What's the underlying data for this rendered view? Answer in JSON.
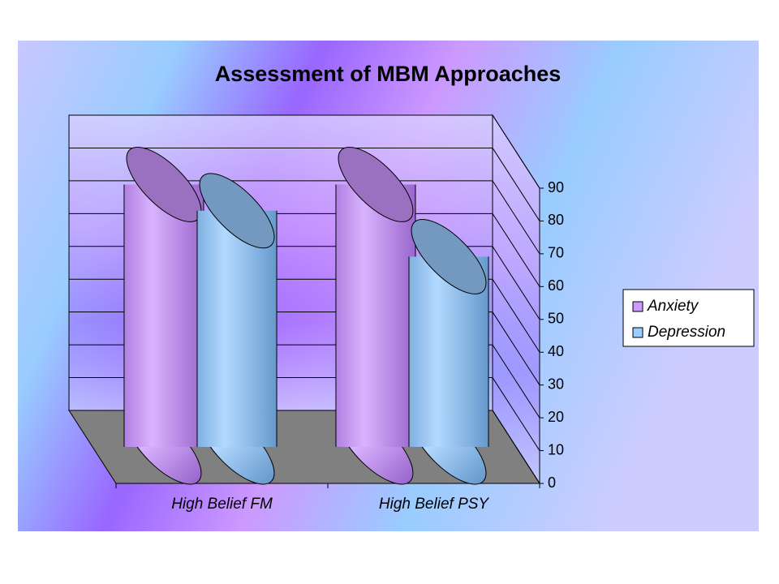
{
  "chart_data": {
    "type": "bar",
    "title": "Assessment of MBM Approaches",
    "categories": [
      "High Belief FM",
      "High Belief PSY"
    ],
    "series": [
      {
        "name": "Anxiety",
        "color": "#cc99ff",
        "values": [
          80,
          80
        ]
      },
      {
        "name": "Depression",
        "color": "#99ccff",
        "values": [
          72,
          58
        ]
      }
    ],
    "ylim": [
      0,
      90
    ],
    "yticks": [
      0,
      10,
      20,
      30,
      40,
      50,
      60,
      70,
      80,
      90
    ],
    "grid": true,
    "legend": "right"
  }
}
